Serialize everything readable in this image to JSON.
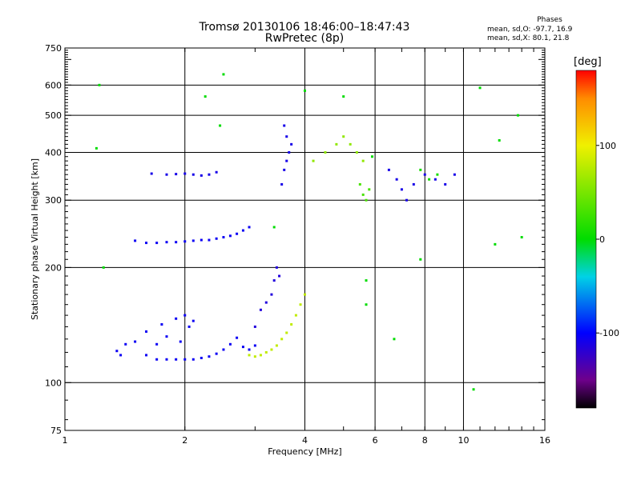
{
  "header": {
    "title_line1": "Tromsø 20130106 18:46:00–18:47:43",
    "title_line2": "RwPretec (8p)"
  },
  "stats": {
    "title": "Phases",
    "o_label": "mean, sd,O: -97.7, 16.9",
    "x_label": "mean, sd,X:  80.1, 21.8"
  },
  "colorbar": {
    "unit": "[deg]",
    "range": [
      -180,
      180
    ],
    "ticks": [
      100,
      0,
      -100
    ],
    "scale": "rainbow (black at -180 through purple, blue, cyan, green, yellow, orange to red at +180)"
  },
  "chart_data": {
    "type": "scatter",
    "xlabel": "Frequency [MHz]",
    "ylabel": "Stationary phase Virtual Height [km]",
    "xscale": "log",
    "yscale": "log",
    "xlim": [
      1,
      16
    ],
    "ylim": [
      75,
      750
    ],
    "x_ticks": [
      1,
      2,
      4,
      6,
      8,
      10,
      16
    ],
    "y_ticks": [
      75,
      100,
      200,
      300,
      400,
      500,
      600,
      750
    ],
    "grid": true,
    "series": [
      {
        "x": [
          1.35,
          1.38,
          1.42,
          1.5,
          1.6,
          1.7,
          1.8,
          1.9,
          2.0,
          2.1,
          2.2,
          2.3,
          2.4,
          2.5,
          2.6,
          2.7,
          2.8,
          2.9,
          3.0
        ],
        "y": [
          121,
          118,
          126,
          128,
          118,
          115,
          115,
          115,
          115,
          115,
          116,
          117,
          119,
          122,
          126,
          131,
          124,
          122,
          125
        ],
        "phase": -105
      },
      {
        "x": [
          1.6,
          1.75,
          1.9,
          2.0,
          2.1,
          1.8,
          1.95,
          2.05,
          1.7
        ],
        "y": [
          136,
          142,
          147,
          150,
          145,
          132,
          128,
          140,
          126
        ],
        "phase": -105
      },
      {
        "x": [
          3.0,
          3.1,
          3.2,
          3.3,
          3.35,
          3.4,
          3.45
        ],
        "y": [
          140,
          155,
          162,
          170,
          185,
          200,
          190
        ],
        "phase": -115
      },
      {
        "x": [
          2.9,
          3.0,
          3.1,
          3.2,
          3.3,
          3.4,
          3.5,
          3.6,
          3.7,
          3.8,
          3.9,
          4.0
        ],
        "y": [
          118,
          117,
          118,
          120,
          122,
          125,
          130,
          135,
          142,
          150,
          160,
          170
        ],
        "phase": 80
      },
      {
        "x": [
          1.5,
          1.6,
          1.7,
          1.8,
          1.9,
          2.0,
          2.1,
          2.2,
          2.3,
          2.4,
          2.5,
          2.6,
          2.7,
          2.8,
          2.9
        ],
        "y": [
          235,
          232,
          232,
          233,
          233,
          234,
          235,
          236,
          236,
          238,
          240,
          242,
          245,
          250,
          255
        ],
        "phase": -105
      },
      {
        "x": [
          1.65,
          1.8,
          1.9,
          2.0,
          2.1,
          2.2,
          2.3,
          2.4
        ],
        "y": [
          352,
          350,
          351,
          352,
          350,
          348,
          350,
          355
        ],
        "phase": -110
      },
      {
        "x": [
          3.5,
          3.55,
          3.6,
          3.65,
          3.7,
          3.6,
          3.55
        ],
        "y": [
          330,
          360,
          380,
          400,
          420,
          440,
          470
        ],
        "phase": -110
      },
      {
        "x": [
          4.2,
          4.5,
          4.8,
          5.0,
          5.2,
          5.4,
          5.6
        ],
        "y": [
          380,
          400,
          420,
          440,
          420,
          400,
          380
        ],
        "phase": 60
      },
      {
        "x": [
          5.5,
          5.6,
          5.7,
          5.8
        ],
        "y": [
          330,
          310,
          300,
          320
        ],
        "phase": 30
      },
      {
        "x": [
          6.5,
          6.8,
          7.0,
          7.2,
          7.5,
          8.0,
          8.5,
          9.0,
          9.5
        ],
        "y": [
          360,
          340,
          320,
          300,
          330,
          350,
          340,
          330,
          350
        ],
        "phase": -110
      },
      {
        "x": [
          7.8,
          8.2,
          8.6
        ],
        "y": [
          360,
          340,
          350
        ],
        "phase": 10
      },
      {
        "x": [
          1.2,
          1.22,
          2.25,
          2.45,
          2.5,
          4.0,
          5.0,
          5.9,
          7.8,
          11,
          12.3,
          13.7,
          10.6,
          12,
          14,
          1.25,
          5.7,
          5.7,
          6.7,
          3.35
        ],
        "y": [
          410,
          600,
          560,
          470,
          640,
          580,
          560,
          390,
          210,
          590,
          430,
          500,
          96,
          230,
          240,
          200,
          185,
          160,
          130,
          255
        ],
        "phase": 0
      }
    ]
  }
}
